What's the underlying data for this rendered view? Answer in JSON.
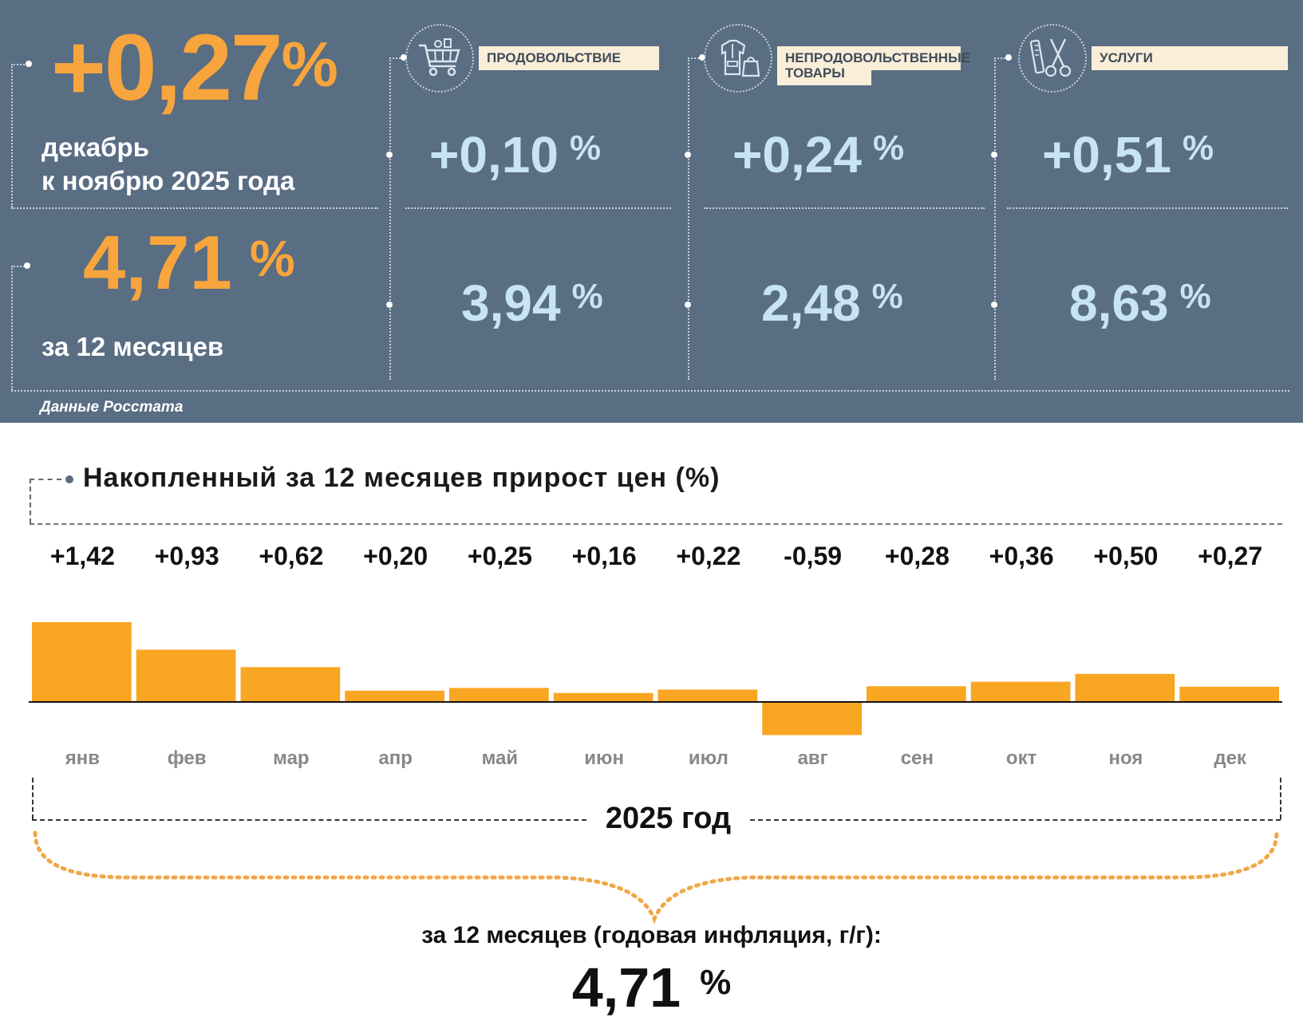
{
  "header": {
    "main_value": "+0,27",
    "main_pct": "%",
    "main_caption_line1": "декабрь",
    "main_caption_line2": "к ноябрю 2025 года",
    "annual_value": "4,71",
    "annual_pct": "%",
    "annual_caption": "за 12 месяцев",
    "source": "Данные Росстата"
  },
  "categories": [
    {
      "label_line1": "ПРОДОВОЛЬСТВИЕ",
      "label_line2": "",
      "icon": "shopping-cart-icon",
      "monthly": "+0,10",
      "annual": "3,94",
      "pct": "%"
    },
    {
      "label_line1": "НЕПРОДОВОЛЬСТВЕННЫЕ",
      "label_line2": "ТОВАРЫ",
      "icon": "clothing-bag-icon",
      "monthly": "+0,24",
      "annual": "2,48",
      "pct": "%"
    },
    {
      "label_line1": "УСЛУГИ",
      "label_line2": "",
      "icon": "comb-scissors-icon",
      "monthly": "+0,51",
      "annual": "8,63",
      "pct": "%"
    }
  ],
  "colors": {
    "panel_bg": "#596d83",
    "orange": "#f7a53c",
    "light_blue": "#c7e4f3",
    "label_bg": "#fbeed9",
    "bar": "#f9a623"
  },
  "chart_data": {
    "type": "bar",
    "title": "Накопленный за 12 месяцев прирост цен (%)",
    "categories": [
      "янв",
      "фев",
      "мар",
      "апр",
      "май",
      "июн",
      "июл",
      "авг",
      "сен",
      "окт",
      "ноя",
      "дек"
    ],
    "value_labels": [
      "+1,42",
      "+0,93",
      "+0,62",
      "+0,20",
      "+0,25",
      "+0,16",
      "+0,22",
      "-0,59",
      "+0,28",
      "+0,36",
      "+0,50",
      "+0,27"
    ],
    "values": [
      1.42,
      0.93,
      0.62,
      0.2,
      0.25,
      0.16,
      0.22,
      -0.59,
      0.28,
      0.36,
      0.5,
      0.27
    ],
    "ylim": [
      -0.6,
      1.45
    ],
    "xlabel": "",
    "ylabel": "",
    "grid": false
  },
  "footer": {
    "year_label": "2025 год",
    "summary_caption": "за 12 месяцев (годовая инфляция, г/г):",
    "summary_value": "4,71",
    "summary_pct": "%"
  }
}
